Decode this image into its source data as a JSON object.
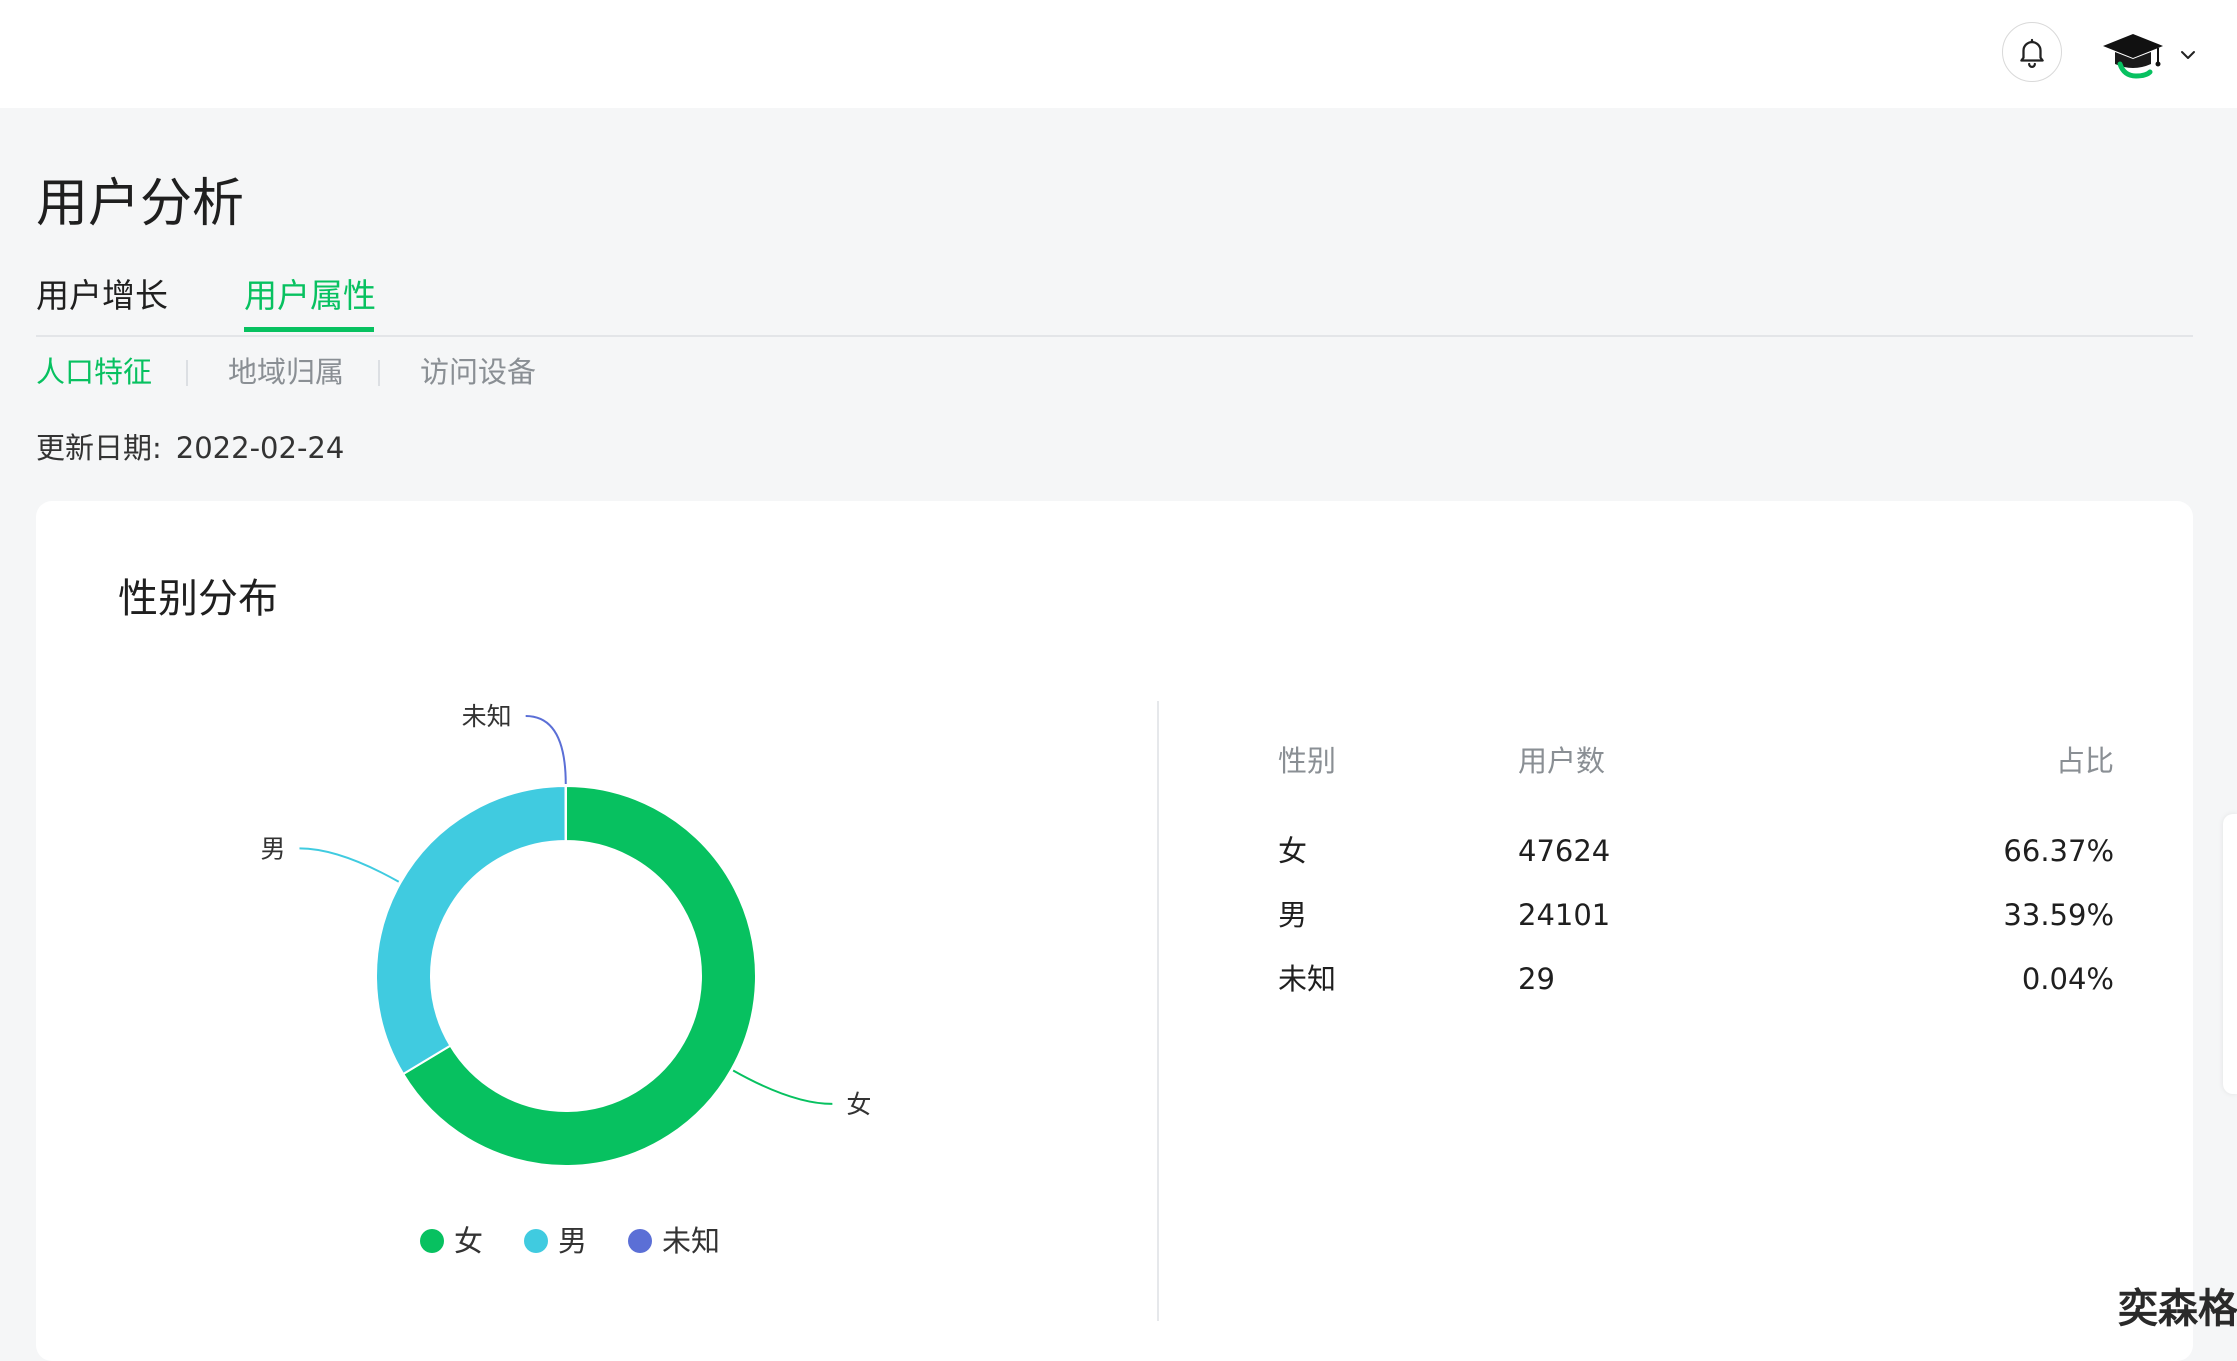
{
  "page": {
    "title": "用户分析",
    "tabs": [
      {
        "label": "用户增长",
        "active": false
      },
      {
        "label": "用户属性",
        "active": true
      }
    ],
    "subtabs": [
      {
        "label": "人口特征",
        "active": true
      },
      {
        "label": "地域归属",
        "active": false
      },
      {
        "label": "访问设备",
        "active": false
      }
    ],
    "update_label": "更新日期:",
    "update_date": "2022-02-24"
  },
  "header": {
    "bell_icon": "bell-icon",
    "avatar_icon": "graduation-cap-avatar",
    "caret_icon": "chevron-down-icon"
  },
  "card": {
    "title": "性别分布"
  },
  "colors": {
    "accent": "#07c160",
    "female": "#07c160",
    "male": "#40cbe0",
    "unknown": "#5b6fd6"
  },
  "chart_data": {
    "type": "pie",
    "title": "性别分布",
    "donut": true,
    "categories": [
      "女",
      "男",
      "未知"
    ],
    "values": [
      47624,
      24101,
      29
    ],
    "legend": "bottom"
  },
  "table": {
    "headers": [
      "性别",
      "用户数",
      "占比"
    ],
    "rows": [
      {
        "gender": "女",
        "count": "47624",
        "percent": "66.37%"
      },
      {
        "gender": "男",
        "count": "24101",
        "percent": "33.59%"
      },
      {
        "gender": "未知",
        "count": "29",
        "percent": "0.04%"
      }
    ]
  },
  "watermark": "奕森格"
}
